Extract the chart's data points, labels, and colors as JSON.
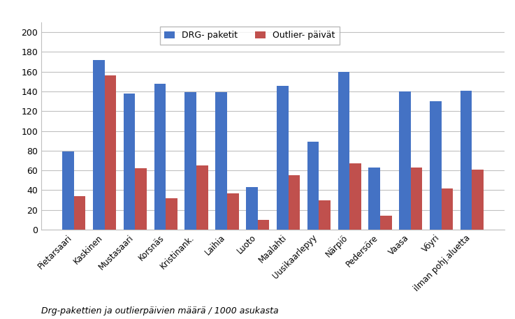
{
  "categories": [
    "Pietarsaari",
    "Kaskinen",
    "Mustasaari",
    "Korsnäs",
    "Kristinank.",
    "Laihia",
    "Luoto",
    "Maalahti",
    "Uusikaarlepyy",
    "Närpiö",
    "Pedersöre",
    "Vaasa",
    "Vöyri",
    "ilman pohj.aluetta"
  ],
  "drg_values": [
    79,
    172,
    138,
    148,
    139,
    139,
    43,
    146,
    89,
    160,
    63,
    140,
    130,
    141
  ],
  "outlier_values": [
    34,
    156,
    62,
    32,
    65,
    37,
    10,
    55,
    30,
    67,
    14,
    63,
    42,
    61
  ],
  "drg_color": "#4472C4",
  "outlier_color": "#C0504D",
  "legend_drg": "DRG- paketit",
  "legend_outlier": "Outlier- päivät",
  "ylabel_bottom": "Drg-pakettien ja outlierpäivien määrä / 1000 asukasta",
  "ylim": [
    0,
    210
  ],
  "yticks": [
    0,
    20,
    40,
    60,
    80,
    100,
    120,
    140,
    160,
    180,
    200
  ],
  "background_color": "#FFFFFF",
  "grid_color": "#C0C0C0",
  "bar_width": 0.38,
  "figsize": [
    7.37,
    4.57
  ],
  "dpi": 100
}
